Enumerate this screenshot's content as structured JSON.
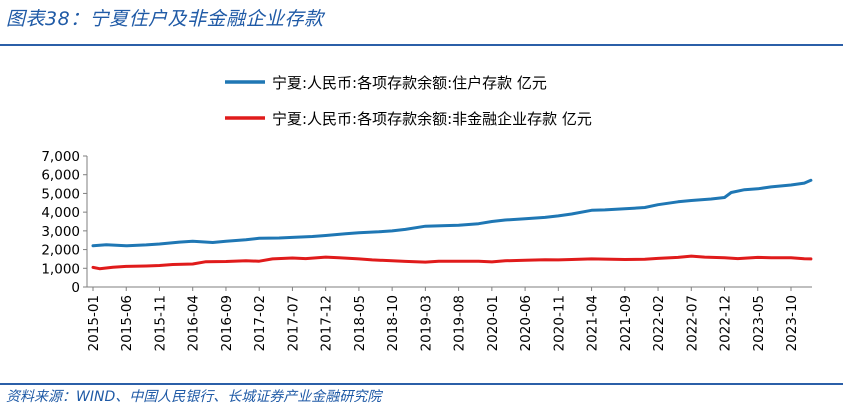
{
  "title": "图表38：宁夏住户及非金融企业存款",
  "source": "资料来源：WIND、中国人民银行、长城证券产业金融研究院",
  "chart_data": {
    "type": "line",
    "title": "",
    "xlabel": "",
    "ylabel": "",
    "ylim": [
      0,
      7000
    ],
    "yticks": [
      0,
      1000,
      2000,
      3000,
      4000,
      5000,
      6000,
      7000
    ],
    "ytick_labels": [
      "0",
      "1,000",
      "2,000",
      "3,000",
      "4,000",
      "5,000",
      "6,000",
      "7,000"
    ],
    "xticks": [
      "2015-01",
      "2015-06",
      "2015-11",
      "2016-04",
      "2016-09",
      "2017-02",
      "2017-07",
      "2017-12",
      "2018-05",
      "2018-10",
      "2019-03",
      "2019-08",
      "2020-01",
      "2020-06",
      "2020-11",
      "2021-04",
      "2021-09",
      "2022-02",
      "2022-07",
      "2022-12",
      "2023-05",
      "2023-10"
    ],
    "x_start": "2015-01",
    "legend_position": "top-center",
    "grid": false,
    "series": [
      {
        "name": "宁夏:人民币:各项存款余额:住户存款 亿元",
        "color": "#1f77b4",
        "points": [
          [
            "2015-01",
            2200
          ],
          [
            "2015-03",
            2260
          ],
          [
            "2015-06",
            2200
          ],
          [
            "2015-09",
            2250
          ],
          [
            "2015-11",
            2300
          ],
          [
            "2016-02",
            2400
          ],
          [
            "2016-04",
            2450
          ],
          [
            "2016-07",
            2380
          ],
          [
            "2016-09",
            2450
          ],
          [
            "2016-12",
            2530
          ],
          [
            "2017-02",
            2600
          ],
          [
            "2017-05",
            2620
          ],
          [
            "2017-07",
            2650
          ],
          [
            "2017-10",
            2700
          ],
          [
            "2017-12",
            2750
          ],
          [
            "2018-03",
            2850
          ],
          [
            "2018-05",
            2900
          ],
          [
            "2018-08",
            2950
          ],
          [
            "2018-10",
            3000
          ],
          [
            "2018-12",
            3080
          ],
          [
            "2019-03",
            3250
          ],
          [
            "2019-06",
            3280
          ],
          [
            "2019-08",
            3300
          ],
          [
            "2019-11",
            3380
          ],
          [
            "2020-01",
            3500
          ],
          [
            "2020-03",
            3580
          ],
          [
            "2020-06",
            3650
          ],
          [
            "2020-09",
            3720
          ],
          [
            "2020-11",
            3800
          ],
          [
            "2021-01",
            3900
          ],
          [
            "2021-04",
            4100
          ],
          [
            "2021-06",
            4120
          ],
          [
            "2021-09",
            4180
          ],
          [
            "2021-12",
            4250
          ],
          [
            "2022-02",
            4400
          ],
          [
            "2022-05",
            4550
          ],
          [
            "2022-07",
            4620
          ],
          [
            "2022-10",
            4700
          ],
          [
            "2022-12",
            4780
          ],
          [
            "2023-01",
            5050
          ],
          [
            "2023-03",
            5200
          ],
          [
            "2023-05",
            5250
          ],
          [
            "2023-07",
            5350
          ],
          [
            "2023-10",
            5450
          ],
          [
            "2023-12",
            5550
          ],
          [
            "2024-01",
            5700
          ]
        ]
      },
      {
        "name": "宁夏:人民币:各项存款余额:非金融企业存款 亿元",
        "color": "#e01b1b",
        "points": [
          [
            "2015-01",
            1050
          ],
          [
            "2015-02",
            980
          ],
          [
            "2015-04",
            1060
          ],
          [
            "2015-06",
            1100
          ],
          [
            "2015-09",
            1120
          ],
          [
            "2015-11",
            1150
          ],
          [
            "2016-01",
            1200
          ],
          [
            "2016-04",
            1230
          ],
          [
            "2016-06",
            1350
          ],
          [
            "2016-09",
            1360
          ],
          [
            "2016-12",
            1400
          ],
          [
            "2017-02",
            1380
          ],
          [
            "2017-04",
            1500
          ],
          [
            "2017-07",
            1550
          ],
          [
            "2017-09",
            1520
          ],
          [
            "2017-12",
            1600
          ],
          [
            "2018-02",
            1560
          ],
          [
            "2018-05",
            1500
          ],
          [
            "2018-07",
            1450
          ],
          [
            "2018-10",
            1400
          ],
          [
            "2018-12",
            1370
          ],
          [
            "2019-03",
            1330
          ],
          [
            "2019-05",
            1380
          ],
          [
            "2019-08",
            1380
          ],
          [
            "2019-11",
            1380
          ],
          [
            "2020-01",
            1340
          ],
          [
            "2020-03",
            1400
          ],
          [
            "2020-06",
            1430
          ],
          [
            "2020-09",
            1460
          ],
          [
            "2020-11",
            1450
          ],
          [
            "2021-01",
            1470
          ],
          [
            "2021-04",
            1500
          ],
          [
            "2021-07",
            1480
          ],
          [
            "2021-09",
            1470
          ],
          [
            "2021-12",
            1480
          ],
          [
            "2022-02",
            1530
          ],
          [
            "2022-05",
            1580
          ],
          [
            "2022-07",
            1650
          ],
          [
            "2022-09",
            1600
          ],
          [
            "2022-12",
            1560
          ],
          [
            "2023-02",
            1520
          ],
          [
            "2023-05",
            1580
          ],
          [
            "2023-07",
            1560
          ],
          [
            "2023-10",
            1560
          ],
          [
            "2023-12",
            1510
          ],
          [
            "2024-01",
            1500
          ]
        ]
      }
    ]
  }
}
